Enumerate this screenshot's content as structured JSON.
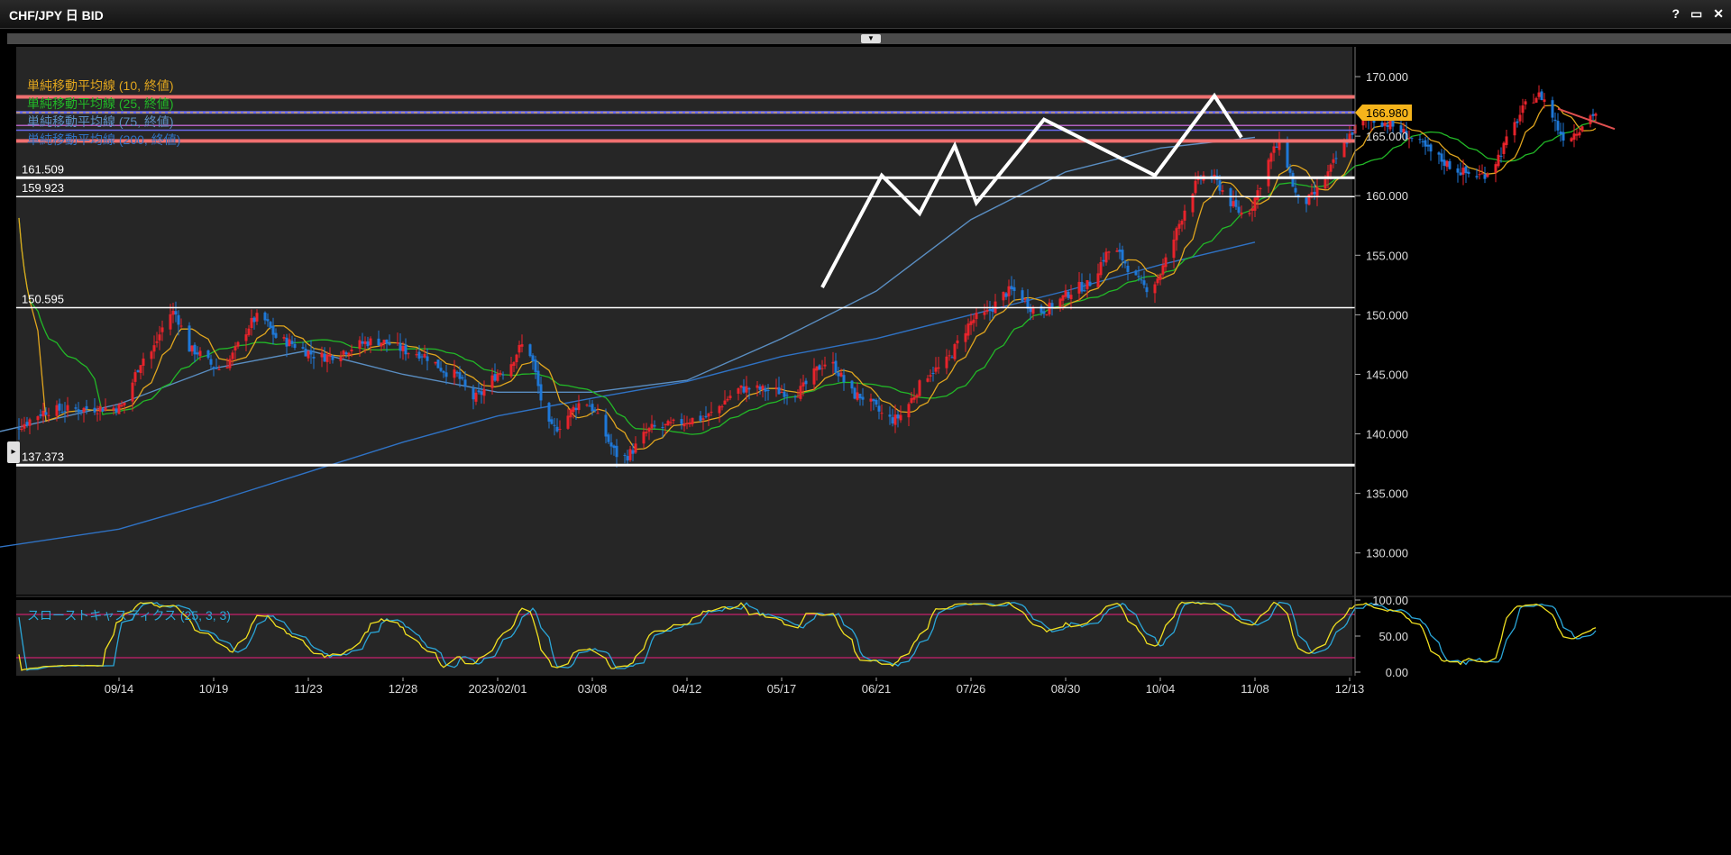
{
  "window": {
    "title": "CHF/JPY 日 BID",
    "buttons": [
      "?",
      "▭",
      "✕"
    ]
  },
  "colors": {
    "background": "#262626",
    "up": "#e8232b",
    "down": "#1e78d8",
    "sma10": "#e0a51e",
    "sma25": "#22b827",
    "sma75": "#5a8ec2",
    "sma200": "#2f72c4",
    "stochK": "#f0e020",
    "stochD": "#2aa6d8",
    "stochBand": "#c8206e",
    "hline": "#ffffff",
    "resistance": "#f07070",
    "priceTag": "#f5b41b"
  },
  "chart_data": [
    {
      "type": "candlestick",
      "title": "CHF/JPY 日 BID",
      "ylim": [
        126.5,
        172.5
      ],
      "yticks": [
        "130.000",
        "135.000",
        "140.000",
        "145.000",
        "150.000",
        "155.000",
        "160.000",
        "165.000",
        "170.000"
      ],
      "xticks": [
        "09/14",
        "10/19",
        "11/23",
        "12/28",
        "2023/02/01",
        "03/08",
        "04/12",
        "05/17",
        "06/21",
        "07/26",
        "08/30",
        "10/04",
        "11/08",
        "12/13"
      ],
      "current_price": "166.980",
      "indicators": [
        {
          "name": "単純移動平均線 (10, 終値)",
          "color": "#e0a51e"
        },
        {
          "name": "単純移動平均線 (25, 終値)",
          "color": "#22b827"
        },
        {
          "name": "単純移動平均線 (75, 終値)",
          "color": "#5a8ec2"
        },
        {
          "name": "単純移動平均線 (200, 終値)",
          "color": "#2f72c4"
        }
      ],
      "horizontal_levels": [
        {
          "value": 161.509,
          "label": "161.509"
        },
        {
          "value": 159.923,
          "label": "159.923"
        },
        {
          "value": 150.595,
          "label": "150.595"
        },
        {
          "value": 137.373,
          "label": "137.373"
        }
      ],
      "resistance_lines": [
        168.3,
        164.6
      ],
      "ma_lines": [
        167.0,
        165.9,
        165.5
      ],
      "pivots": [
        {
          "date": "06/01",
          "price": 152.3
        },
        {
          "date": "06/23",
          "price": 161.7
        },
        {
          "date": "07/07",
          "price": 158.5
        },
        {
          "date": "07/20",
          "price": 164.2
        },
        {
          "date": "07/28",
          "price": 159.4
        },
        {
          "date": "08/22",
          "price": 166.4
        },
        {
          "date": "10/02",
          "price": 161.7
        },
        {
          "date": "10/24",
          "price": 168.4
        },
        {
          "date": "11/03",
          "price": 164.9
        }
      ],
      "series": [
        {
          "name": "200",
          "x": [
            "08/01",
            "09/14",
            "10/19",
            "11/23",
            "12/28",
            "2023/02/01",
            "03/08",
            "04/12",
            "05/17",
            "06/21",
            "07/26",
            "08/30",
            "10/04",
            "11/08"
          ],
          "y": [
            130.5,
            132.0,
            134.3,
            136.8,
            139.3,
            141.5,
            143.0,
            144.4,
            146.5,
            148.0,
            150.0,
            152.0,
            154.2,
            156.1
          ]
        },
        {
          "name": "75",
          "x": [
            "08/01",
            "09/14",
            "10/19",
            "11/23",
            "12/28",
            "2023/02/01",
            "03/08",
            "04/12",
            "05/17",
            "06/21",
            "07/26",
            "08/30",
            "10/04",
            "11/08"
          ],
          "y": [
            140.2,
            142.5,
            145.5,
            147.0,
            145.0,
            143.5,
            143.5,
            144.5,
            148.0,
            152.0,
            158.0,
            162.0,
            164.0,
            164.9
          ]
        }
      ]
    },
    {
      "type": "line",
      "title": "スローストキャスティクス (25, 3, 3)",
      "ylim": [
        -5,
        100
      ],
      "yticks": [
        "0.00",
        "50.00",
        "100.00"
      ],
      "bands": [
        80,
        20
      ]
    }
  ]
}
